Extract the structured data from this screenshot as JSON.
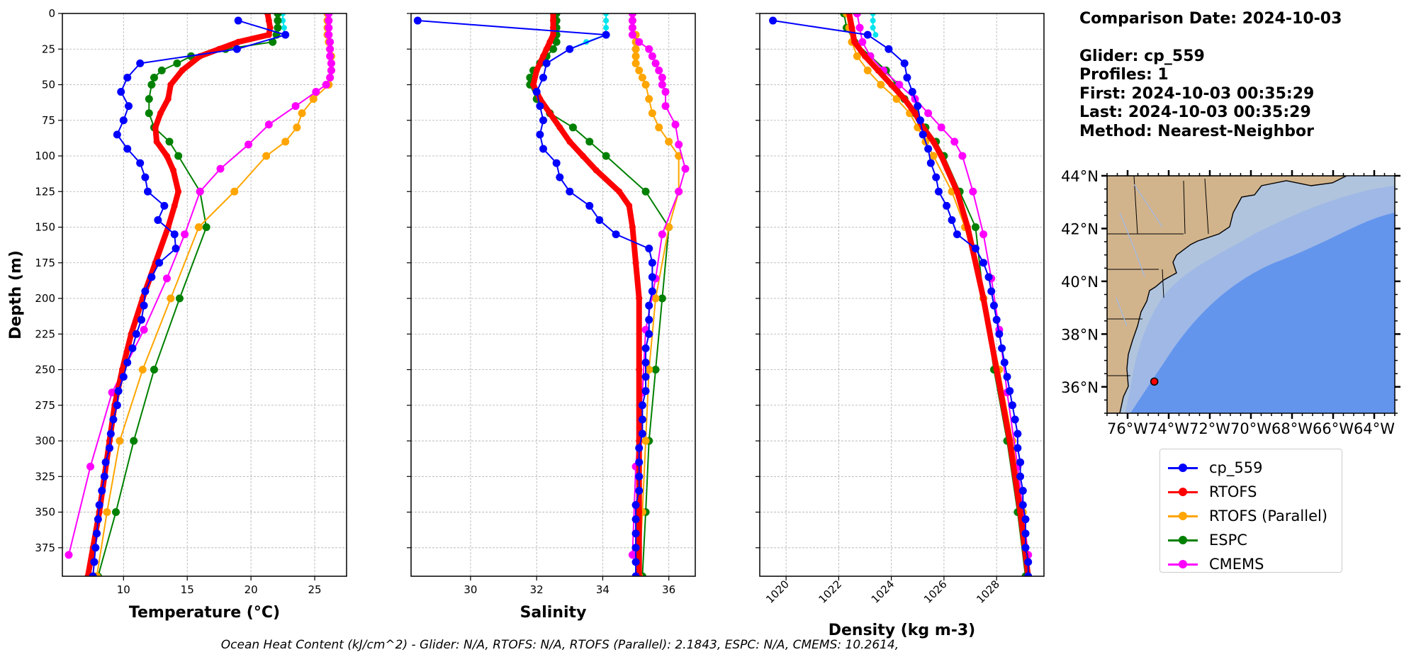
{
  "info": {
    "comparison_date": "Comparison Date: 2024-10-03",
    "glider": "Glider: cp_559",
    "profiles": "Profiles: 1",
    "first": "First: 2024-10-03 00:35:29",
    "last": "Last: 2024-10-03 00:35:29",
    "method": "Method: Nearest-Neighbor"
  },
  "footer": "Ocean Heat Content (kJ/cm^2) - Glider: N/A,  RTOFS: N/A,  RTOFS (Parallel): 2.1843,  ESPC: N/A,  CMEMS: 10.2614,",
  "colors": {
    "cp_559": "#0000ff",
    "rtofs": "#ff0000",
    "rtofs_parallel": "#ffa500",
    "espc": "#008000",
    "cmems": "#ff00ff",
    "extra_surface": "#00e5ee",
    "map_land": "#d2b48c",
    "map_shelf": "#b0c4de",
    "map_mid": "#9fb8e6",
    "map_deep": "#6495ed"
  },
  "legend": [
    {
      "key": "cp_559",
      "label": "cp_559",
      "color": "#0000ff"
    },
    {
      "key": "rtofs",
      "label": "RTOFS",
      "color": "#ff0000"
    },
    {
      "key": "rtofs_parallel",
      "label": "RTOFS (Parallel)",
      "color": "#ffa500"
    },
    {
      "key": "espc",
      "label": "ESPC",
      "color": "#008000"
    },
    {
      "key": "cmems",
      "label": "CMEMS",
      "color": "#ff00ff"
    }
  ],
  "map": {
    "lat_ticks": [
      "44°N",
      "42°N",
      "40°N",
      "38°N",
      "36°N"
    ],
    "lat_values": [
      44,
      42,
      40,
      38,
      36
    ],
    "lon_ticks": [
      "76°W",
      "74°W",
      "72°W",
      "70°W",
      "68°W",
      "66°W",
      "64°W"
    ],
    "lon_values": [
      -76,
      -74,
      -72,
      -70,
      -68,
      -66,
      -64
    ],
    "lon_range": [
      -77,
      -63
    ],
    "lat_range": [
      35,
      44
    ],
    "glider_position": {
      "lon": -74.7,
      "lat": 36.2
    }
  },
  "chart_data": [
    {
      "type": "line",
      "xlabel": "Temperature (°C)",
      "ylabel": "Depth (m)",
      "xlim": [
        5.2,
        27.5
      ],
      "ylim": [
        395,
        0
      ],
      "xticks": [
        10,
        15,
        20,
        25
      ],
      "xtick_labels": [
        "10",
        "15",
        "20",
        "25"
      ],
      "yticks": [
        0,
        25,
        50,
        75,
        100,
        125,
        150,
        175,
        200,
        225,
        250,
        275,
        300,
        325,
        350,
        375
      ],
      "ytick_labels": [
        "0",
        "25",
        "50",
        "75",
        "100",
        "125",
        "150",
        "175",
        "200",
        "225",
        "250",
        "275",
        "300",
        "325",
        "350",
        "375"
      ],
      "grid": true,
      "series": [
        {
          "name": "cp_559",
          "key": "cp_559",
          "depth": [
            5,
            15,
            25,
            35,
            45,
            55,
            65,
            75,
            85,
            95,
            105,
            115,
            125,
            135,
            145,
            155,
            165,
            175,
            185,
            195,
            205,
            215,
            225,
            235,
            245,
            255,
            265,
            275,
            285,
            295,
            305,
            315,
            325,
            335,
            345,
            355,
            365,
            375,
            385,
            395
          ],
          "values": [
            19.0,
            22.7,
            18.9,
            11.3,
            10.3,
            9.8,
            10.4,
            10.0,
            9.5,
            10.3,
            11.3,
            11.7,
            11.9,
            13.2,
            12.7,
            14.0,
            14.1,
            12.8,
            12.2,
            11.7,
            11.6,
            11.4,
            11.0,
            10.7,
            10.3,
            10.0,
            9.6,
            9.5,
            9.2,
            9.0,
            8.9,
            8.6,
            8.5,
            8.3,
            8.1,
            8.0,
            7.9,
            7.8,
            7.7,
            7.6
          ]
        },
        {
          "name": "RTOFS",
          "key": "rtofs",
          "depth": [
            0,
            5,
            10,
            15,
            20,
            25,
            30,
            40,
            50,
            60,
            70,
            80,
            90,
            100,
            110,
            125,
            135,
            150,
            175,
            200,
            225,
            250,
            275,
            300,
            325,
            350,
            375,
            395
          ],
          "values": [
            21.3,
            21.4,
            21.5,
            21.4,
            19.0,
            17.5,
            16.0,
            14.6,
            13.7,
            13.5,
            12.9,
            12.5,
            12.6,
            13.4,
            13.9,
            14.3,
            14.0,
            13.5,
            12.5,
            11.5,
            10.6,
            9.9,
            9.3,
            8.9,
            8.5,
            8.1,
            7.6,
            7.2
          ]
        },
        {
          "name": "RTOFS (Parallel)",
          "key": "rtofs_parallel",
          "depth": [
            0,
            5,
            10,
            15,
            20,
            25,
            30,
            35,
            40,
            45,
            50,
            60,
            70,
            80,
            90,
            100,
            125,
            150,
            200,
            250,
            300,
            350,
            395
          ],
          "values": [
            26.0,
            26.0,
            26.0,
            26.0,
            26.1,
            26.2,
            26.3,
            26.3,
            26.3,
            26.2,
            26.1,
            24.9,
            24.0,
            23.6,
            22.7,
            21.2,
            18.7,
            15.9,
            13.7,
            11.5,
            9.7,
            8.7,
            7.9
          ]
        },
        {
          "name": "ESPC",
          "key": "espc",
          "depth": [
            0,
            5,
            10,
            15,
            20,
            25,
            30,
            35,
            40,
            45,
            50,
            60,
            70,
            80,
            90,
            100,
            125,
            150,
            200,
            250,
            300,
            350,
            395
          ],
          "values": [
            22.1,
            22.1,
            22.1,
            22.0,
            21.7,
            18.0,
            15.3,
            14.2,
            13.0,
            12.4,
            12.2,
            12.0,
            12.0,
            12.4,
            13.6,
            14.3,
            16.0,
            16.5,
            14.4,
            12.4,
            10.8,
            9.4,
            8.0
          ]
        },
        {
          "name": "CMEMS",
          "key": "cmems",
          "depth": [
            0,
            5,
            10,
            15,
            20,
            25,
            30,
            35,
            40,
            45,
            50,
            55,
            65,
            78,
            92,
            109,
            125,
            155,
            186,
            222,
            266,
            318,
            380
          ],
          "values": [
            26.1,
            26.1,
            26.1,
            26.1,
            26.2,
            26.2,
            26.2,
            26.3,
            26.3,
            26.2,
            25.9,
            25.1,
            23.5,
            21.4,
            19.8,
            17.6,
            16.0,
            14.8,
            13.4,
            11.6,
            9.1,
            7.4,
            5.7
          ]
        }
      ],
      "extra_surface": {
        "depth": [
          0,
          5,
          10,
          15
        ],
        "values": [
          22.5,
          22.5,
          22.6,
          22.6
        ]
      }
    },
    {
      "type": "line",
      "xlabel": "Salinity",
      "ylim": [
        395,
        0
      ],
      "xlim": [
        28.2,
        36.8
      ],
      "xticks": [
        30,
        32,
        34,
        36
      ],
      "xtick_labels": [
        "30",
        "32",
        "34",
        "36"
      ],
      "grid": true,
      "series": [
        {
          "name": "cp_559",
          "key": "cp_559",
          "depth": [
            5,
            15,
            25,
            35,
            45,
            55,
            65,
            75,
            85,
            95,
            105,
            115,
            125,
            135,
            145,
            155,
            165,
            175,
            185,
            195,
            205,
            215,
            225,
            235,
            245,
            255,
            265,
            275,
            285,
            295,
            305,
            315,
            325,
            335,
            345,
            355,
            365,
            375,
            385,
            395
          ],
          "values": [
            28.4,
            34.1,
            33.0,
            32.3,
            32.2,
            32.0,
            32.1,
            32.2,
            32.1,
            32.2,
            32.6,
            32.7,
            33.0,
            33.6,
            33.9,
            34.4,
            35.4,
            35.5,
            35.5,
            35.5,
            35.4,
            35.4,
            35.4,
            35.3,
            35.3,
            35.3,
            35.3,
            35.2,
            35.2,
            35.2,
            35.1,
            35.1,
            35.1,
            35.1,
            35.0,
            35.0,
            35.0,
            35.0,
            35.0,
            35.0
          ]
        },
        {
          "name": "RTOFS",
          "key": "rtofs",
          "depth": [
            0,
            5,
            10,
            15,
            20,
            25,
            30,
            40,
            50,
            60,
            70,
            80,
            90,
            100,
            110,
            125,
            135,
            150,
            175,
            200,
            250,
            300,
            350,
            395
          ],
          "values": [
            32.5,
            32.5,
            32.5,
            32.5,
            32.4,
            32.3,
            32.2,
            32.0,
            31.9,
            32.1,
            32.4,
            32.7,
            33.0,
            33.4,
            33.8,
            34.5,
            34.8,
            34.9,
            35.0,
            35.1,
            35.1,
            35.1,
            35.1,
            35.1
          ]
        },
        {
          "name": "RTOFS (Parallel)",
          "key": "rtofs_parallel",
          "depth": [
            0,
            5,
            10,
            15,
            20,
            25,
            30,
            35,
            40,
            45,
            50,
            60,
            70,
            80,
            90,
            100,
            125,
            150,
            200,
            250,
            300,
            350,
            395
          ],
          "values": [
            34.9,
            34.9,
            34.9,
            35.0,
            35.0,
            35.0,
            35.0,
            35.0,
            35.1,
            35.2,
            35.3,
            35.4,
            35.5,
            35.7,
            36.0,
            36.3,
            36.3,
            36.0,
            35.6,
            35.4,
            35.3,
            35.2,
            35.1
          ]
        },
        {
          "name": "ESPC",
          "key": "espc",
          "depth": [
            0,
            5,
            10,
            15,
            20,
            25,
            30,
            35,
            40,
            45,
            50,
            60,
            70,
            80,
            90,
            100,
            125,
            150,
            200,
            250,
            300,
            350,
            395
          ],
          "values": [
            32.6,
            32.6,
            32.6,
            32.6,
            32.6,
            32.5,
            32.3,
            32.1,
            31.9,
            31.8,
            31.8,
            32.0,
            32.4,
            33.1,
            33.6,
            34.1,
            35.3,
            36.0,
            35.8,
            35.6,
            35.4,
            35.3,
            35.2
          ]
        },
        {
          "name": "CMEMS",
          "key": "cmems",
          "depth": [
            0,
            5,
            10,
            15,
            20,
            25,
            30,
            35,
            40,
            45,
            50,
            55,
            65,
            78,
            92,
            109,
            125,
            155,
            186,
            222,
            266,
            318,
            380
          ],
          "values": [
            34.9,
            34.9,
            34.9,
            34.9,
            35.1,
            35.4,
            35.5,
            35.6,
            35.7,
            35.8,
            35.8,
            35.9,
            35.9,
            36.2,
            36.3,
            36.5,
            36.3,
            35.8,
            35.6,
            35.3,
            35.2,
            35.0,
            34.9
          ]
        }
      ],
      "extra_surface": {
        "depth": [
          0,
          5,
          10,
          15,
          20,
          25
        ],
        "values": [
          34.1,
          34.1,
          34.1,
          34.1,
          33.5,
          33.0
        ]
      }
    },
    {
      "type": "line",
      "xlabel": "Density (kg m-3)",
      "ylim": [
        395,
        0
      ],
      "xlim": [
        1019.0,
        1029.8
      ],
      "xticks": [
        1020,
        1022,
        1024,
        1026,
        1028
      ],
      "xtick_labels": [
        "1020",
        "1022",
        "1024",
        "1026",
        "1028"
      ],
      "grid": true,
      "series": [
        {
          "name": "cp_559",
          "key": "cp_559",
          "depth": [
            5,
            15,
            25,
            35,
            45,
            55,
            65,
            75,
            85,
            95,
            105,
            115,
            125,
            135,
            145,
            155,
            165,
            175,
            185,
            195,
            205,
            215,
            225,
            235,
            245,
            255,
            265,
            275,
            285,
            295,
            305,
            315,
            325,
            335,
            345,
            355,
            365,
            375,
            385,
            395
          ],
          "values": [
            1019.5,
            1023.1,
            1023.9,
            1024.5,
            1024.6,
            1024.8,
            1025.0,
            1025.1,
            1025.2,
            1025.4,
            1025.5,
            1025.7,
            1025.8,
            1026.1,
            1026.3,
            1026.5,
            1027.2,
            1027.5,
            1027.7,
            1027.8,
            1027.9,
            1028.0,
            1028.1,
            1028.2,
            1028.3,
            1028.4,
            1028.5,
            1028.6,
            1028.7,
            1028.8,
            1028.8,
            1028.9,
            1028.9,
            1029.0,
            1029.0,
            1029.1,
            1029.1,
            1029.1,
            1029.2,
            1029.2
          ]
        },
        {
          "name": "RTOFS",
          "key": "rtofs",
          "depth": [
            0,
            10,
            20,
            30,
            40,
            50,
            60,
            70,
            80,
            90,
            100,
            125,
            150,
            200,
            250,
            300,
            350,
            395
          ],
          "values": [
            1022.4,
            1022.5,
            1022.6,
            1023.0,
            1023.5,
            1024.0,
            1024.5,
            1024.9,
            1025.2,
            1025.6,
            1025.9,
            1026.5,
            1026.9,
            1027.5,
            1028.0,
            1028.5,
            1028.9,
            1029.2
          ]
        },
        {
          "name": "RTOFS (Parallel)",
          "key": "rtofs_parallel",
          "depth": [
            0,
            10,
            20,
            30,
            40,
            50,
            60,
            70,
            80,
            90,
            100,
            125,
            150,
            200,
            250,
            300,
            350,
            395
          ],
          "values": [
            1022.3,
            1022.4,
            1022.5,
            1022.7,
            1023.1,
            1023.6,
            1024.2,
            1024.7,
            1025.0,
            1025.3,
            1025.6,
            1026.3,
            1026.8,
            1027.5,
            1028.1,
            1028.6,
            1029.0,
            1029.2
          ]
        },
        {
          "name": "ESPC",
          "key": "espc",
          "depth": [
            0,
            10,
            20,
            30,
            40,
            50,
            60,
            70,
            80,
            90,
            100,
            125,
            150,
            200,
            250,
            300,
            350,
            395
          ],
          "values": [
            1022.2,
            1022.3,
            1022.6,
            1023.2,
            1023.8,
            1024.2,
            1024.5,
            1024.9,
            1025.3,
            1025.7,
            1026.0,
            1026.6,
            1027.2,
            1027.5,
            1027.9,
            1028.4,
            1028.8,
            1029.1
          ]
        },
        {
          "name": "CMEMS",
          "key": "cmems",
          "depth": [
            0,
            10,
            20,
            30,
            40,
            50,
            60,
            70,
            80,
            90,
            100,
            125,
            155,
            186,
            222,
            266,
            318,
            380
          ],
          "values": [
            1022.7,
            1022.8,
            1022.9,
            1023.2,
            1023.7,
            1024.3,
            1024.9,
            1025.4,
            1025.9,
            1026.4,
            1026.7,
            1027.1,
            1027.5,
            1027.8,
            1028.1,
            1028.4,
            1028.8,
            1029.2
          ]
        }
      ],
      "extra_surface": {
        "depth": [
          0,
          5,
          10,
          15
        ],
        "values": [
          1023.3,
          1023.3,
          1023.3,
          1023.4
        ]
      }
    }
  ]
}
